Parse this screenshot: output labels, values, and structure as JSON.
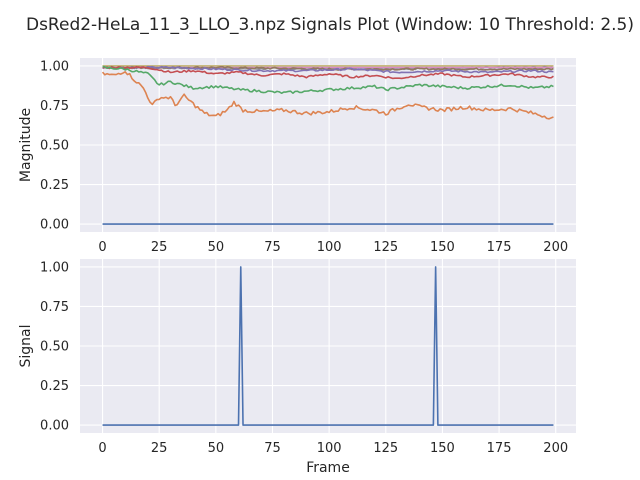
{
  "figure": {
    "title": "DsRed2-HeLa_11_3_LLO_3.npz Signals Plot (Window: 10 Threshold: 2.5)",
    "background_color": "#eaeaf2",
    "grid_color": "#ffffff"
  },
  "chart_data": [
    {
      "type": "line",
      "ylabel": "Magnitude",
      "xlabel": "",
      "xlim": [
        -9.95,
        208.95
      ],
      "ylim": [
        -0.05,
        1.05
      ],
      "x_ticks": [
        0,
        25,
        50,
        75,
        100,
        125,
        150,
        175,
        200
      ],
      "y_ticks": [
        0.0,
        0.25,
        0.5,
        0.75,
        1.0
      ],
      "y_tick_labels": [
        "0.00",
        "0.25",
        "0.50",
        "0.75",
        "1.00"
      ],
      "grid": true,
      "n_frames": 200,
      "series": [
        {
          "color": "#4c72b0",
          "keypoints": [
            [
              0,
              0.0
            ],
            [
              199,
              0.0
            ]
          ]
        },
        {
          "color": "#dd8452",
          "keypoints": [
            [
              0,
              0.95
            ],
            [
              5,
              0.94
            ],
            [
              10,
              0.97
            ],
            [
              15,
              0.9
            ],
            [
              18,
              0.86
            ],
            [
              22,
              0.75
            ],
            [
              25,
              0.8
            ],
            [
              30,
              0.8
            ],
            [
              32,
              0.75
            ],
            [
              36,
              0.81
            ],
            [
              40,
              0.76
            ],
            [
              45,
              0.7
            ],
            [
              50,
              0.68
            ],
            [
              55,
              0.72
            ],
            [
              58,
              0.77
            ],
            [
              62,
              0.72
            ],
            [
              70,
              0.71
            ],
            [
              80,
              0.72
            ],
            [
              90,
              0.7
            ],
            [
              100,
              0.71
            ],
            [
              110,
              0.74
            ],
            [
              120,
              0.72
            ],
            [
              125,
              0.7
            ],
            [
              130,
              0.73
            ],
            [
              135,
              0.76
            ],
            [
              140,
              0.74
            ],
            [
              150,
              0.72
            ],
            [
              160,
              0.74
            ],
            [
              170,
              0.72
            ],
            [
              180,
              0.73
            ],
            [
              190,
              0.7
            ],
            [
              199,
              0.67
            ]
          ]
        },
        {
          "color": "#55a868",
          "keypoints": [
            [
              0,
              0.99
            ],
            [
              10,
              0.98
            ],
            [
              20,
              0.95
            ],
            [
              25,
              0.88
            ],
            [
              30,
              0.9
            ],
            [
              35,
              0.88
            ],
            [
              40,
              0.86
            ],
            [
              50,
              0.87
            ],
            [
              60,
              0.85
            ],
            [
              70,
              0.84
            ],
            [
              80,
              0.83
            ],
            [
              90,
              0.84
            ],
            [
              100,
              0.85
            ],
            [
              110,
              0.86
            ],
            [
              120,
              0.87
            ],
            [
              125,
              0.85
            ],
            [
              130,
              0.86
            ],
            [
              140,
              0.88
            ],
            [
              150,
              0.87
            ],
            [
              160,
              0.86
            ],
            [
              170,
              0.87
            ],
            [
              180,
              0.88
            ],
            [
              190,
              0.86
            ],
            [
              199,
              0.87
            ]
          ]
        },
        {
          "color": "#c44e52",
          "keypoints": [
            [
              0,
              0.99
            ],
            [
              20,
              0.99
            ],
            [
              30,
              0.96
            ],
            [
              40,
              0.97
            ],
            [
              50,
              0.95
            ],
            [
              60,
              0.96
            ],
            [
              70,
              0.94
            ],
            [
              80,
              0.95
            ],
            [
              90,
              0.93
            ],
            [
              100,
              0.95
            ],
            [
              110,
              0.93
            ],
            [
              120,
              0.94
            ],
            [
              130,
              0.92
            ],
            [
              140,
              0.94
            ],
            [
              150,
              0.95
            ],
            [
              160,
              0.93
            ],
            [
              170,
              0.94
            ],
            [
              180,
              0.95
            ],
            [
              190,
              0.93
            ],
            [
              199,
              0.93
            ]
          ]
        },
        {
          "color": "#8172b3",
          "keypoints": [
            [
              0,
              0.99
            ],
            [
              30,
              0.99
            ],
            [
              50,
              0.98
            ],
            [
              70,
              0.97
            ],
            [
              90,
              0.97
            ],
            [
              110,
              0.98
            ],
            [
              130,
              0.96
            ],
            [
              150,
              0.97
            ],
            [
              170,
              0.96
            ],
            [
              190,
              0.97
            ],
            [
              199,
              0.96
            ]
          ]
        },
        {
          "color": "#937860",
          "keypoints": [
            [
              0,
              0.99
            ],
            [
              50,
              0.99
            ],
            [
              100,
              0.98
            ],
            [
              150,
              0.98
            ],
            [
              199,
              0.98
            ]
          ]
        },
        {
          "color": "#da8bc3",
          "keypoints": [
            [
              0,
              0.99
            ],
            [
              60,
              0.99
            ],
            [
              120,
              0.99
            ],
            [
              199,
              0.99
            ]
          ]
        },
        {
          "color": "#8c8c8c",
          "keypoints": [
            [
              0,
              0.99
            ],
            [
              100,
              0.98
            ],
            [
              199,
              0.99
            ]
          ]
        },
        {
          "color": "#ccb974",
          "keypoints": [
            [
              0,
              1.0
            ],
            [
              199,
              1.0
            ]
          ]
        },
        {
          "color": "#64b5cd",
          "keypoints": [
            [
              0,
              0.99
            ],
            [
              199,
              0.99
            ]
          ]
        },
        {
          "color": "#8fb0c9",
          "keypoints": [
            [
              0,
              1.0
            ],
            [
              199,
              1.0
            ]
          ]
        }
      ]
    },
    {
      "type": "line",
      "ylabel": "Signal",
      "xlabel": "Frame",
      "xlim": [
        -9.95,
        208.95
      ],
      "ylim": [
        -0.05,
        1.05
      ],
      "x_ticks": [
        0,
        25,
        50,
        75,
        100,
        125,
        150,
        175,
        200
      ],
      "y_ticks": [
        0.0,
        0.25,
        0.5,
        0.75,
        1.0
      ],
      "y_tick_labels": [
        "0.00",
        "0.25",
        "0.50",
        "0.75",
        "1.00"
      ],
      "grid": true,
      "n_frames": 200,
      "series": [
        {
          "color": "#4c72b0",
          "keypoints": [
            [
              0,
              0
            ],
            [
              60,
              0
            ],
            [
              61,
              1
            ],
            [
              62,
              0
            ],
            [
              146,
              0
            ],
            [
              147,
              1
            ],
            [
              148,
              0
            ],
            [
              199,
              0
            ]
          ]
        }
      ]
    }
  ]
}
